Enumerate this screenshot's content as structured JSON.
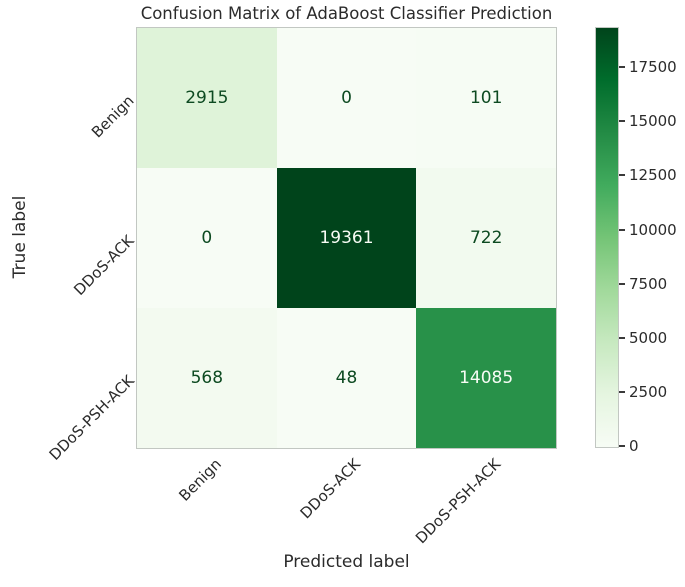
{
  "figure": {
    "background_color": "#ffffff",
    "frame_color": "#c2c7c2"
  },
  "chart_data": {
    "type": "heatmap",
    "title": "Confusion Matrix of AdaBoost Classifier Prediction",
    "xlabel": "Predicted label",
    "ylabel": "True label",
    "x_categories": [
      "Benign",
      "DDoS-ACK",
      "DDoS-PSH-ACK"
    ],
    "y_categories": [
      "Benign",
      "DDoS-ACK",
      "DDoS-PSH-ACK"
    ],
    "matrix": [
      [
        2915,
        0,
        101
      ],
      [
        0,
        19361,
        722
      ],
      [
        568,
        48,
        14085
      ]
    ],
    "vmin": 0,
    "vmax": 19361,
    "colormap": "Greens",
    "colormap_stops": [
      "#f7fcf5",
      "#e5f5e0",
      "#c7e9c0",
      "#a1d99b",
      "#74c476",
      "#41ab5d",
      "#238b45",
      "#006d2c",
      "#00441b"
    ],
    "annotation_dark_color": "#0d4a21",
    "annotation_light_color": "#f7fcf5",
    "colorbar_ticks": [
      0,
      2500,
      5000,
      7500,
      10000,
      12500,
      15000,
      17500
    ],
    "colorbar_position": "right",
    "grid": false,
    "tick_rotation_deg": 45
  }
}
